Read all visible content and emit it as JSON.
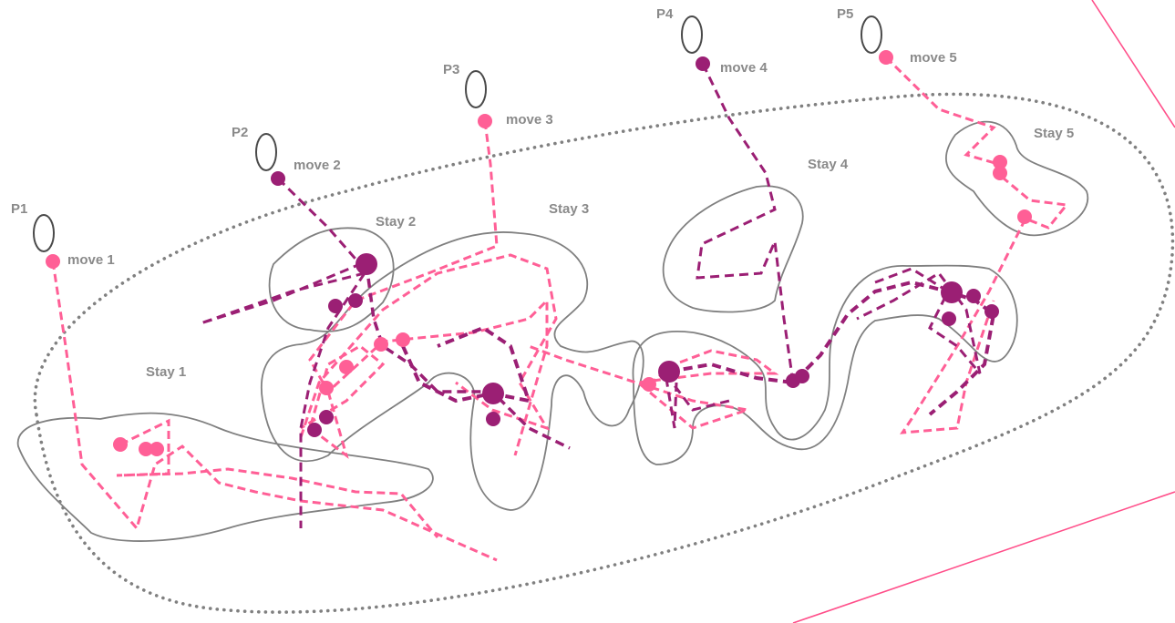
{
  "colors": {
    "pink": "#ff5f96",
    "purple": "#9b1f74",
    "outline": "#808080",
    "label": "#8a8a8a",
    "boundary": "#ff4f8a"
  },
  "persons": [
    {
      "id": "P1",
      "move": "move 1"
    },
    {
      "id": "P2",
      "move": "move 2"
    },
    {
      "id": "P3",
      "move": "move 3"
    },
    {
      "id": "P4",
      "move": "move 4"
    },
    {
      "id": "P5",
      "move": "move 5"
    }
  ],
  "stays": [
    "Stay 1",
    "Stay 2",
    "Stay 3",
    "Stay 4",
    "Stay 5"
  ]
}
